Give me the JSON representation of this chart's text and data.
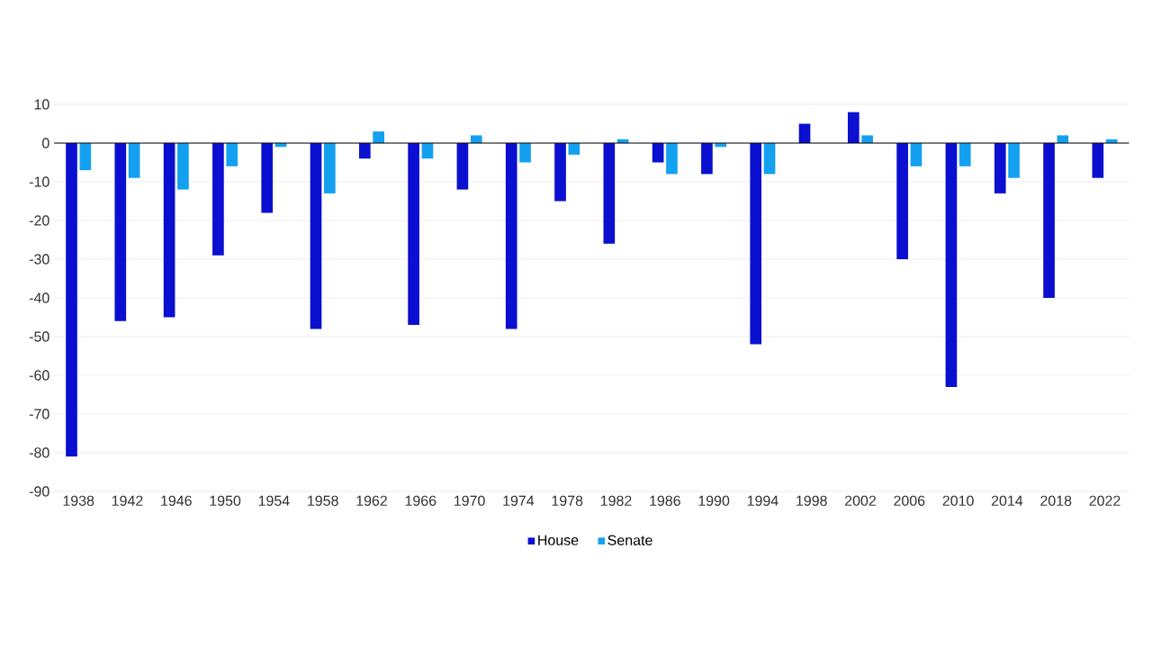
{
  "chart_data": {
    "type": "bar",
    "categories": [
      "1938",
      "1942",
      "1946",
      "1950",
      "1954",
      "1958",
      "1962",
      "1966",
      "1970",
      "1974",
      "1978",
      "1982",
      "1986",
      "1990",
      "1994",
      "1998",
      "2002",
      "2006",
      "2010",
      "2014",
      "2018",
      "2022"
    ],
    "series": [
      {
        "name": "House",
        "color": "#0a0fd0",
        "values": [
          -81,
          -46,
          -45,
          -29,
          -18,
          -48,
          -4,
          -47,
          -12,
          -48,
          -15,
          -26,
          -5,
          -8,
          -52,
          5,
          8,
          -30,
          -63,
          -13,
          -40,
          -9
        ]
      },
      {
        "name": "Senate",
        "color": "#14a0f0",
        "values": [
          -7,
          -9,
          -12,
          -6,
          -1,
          -13,
          3,
          -4,
          2,
          -5,
          -3,
          1,
          -8,
          -1,
          -8,
          0,
          2,
          -6,
          -6,
          -9,
          2,
          1
        ]
      }
    ],
    "ylim": [
      -90,
      10
    ],
    "yticks": [
      -90,
      -80,
      -70,
      -60,
      -50,
      -40,
      -30,
      -20,
      -10,
      0,
      10
    ],
    "grid": "y",
    "legend": "bottom"
  }
}
